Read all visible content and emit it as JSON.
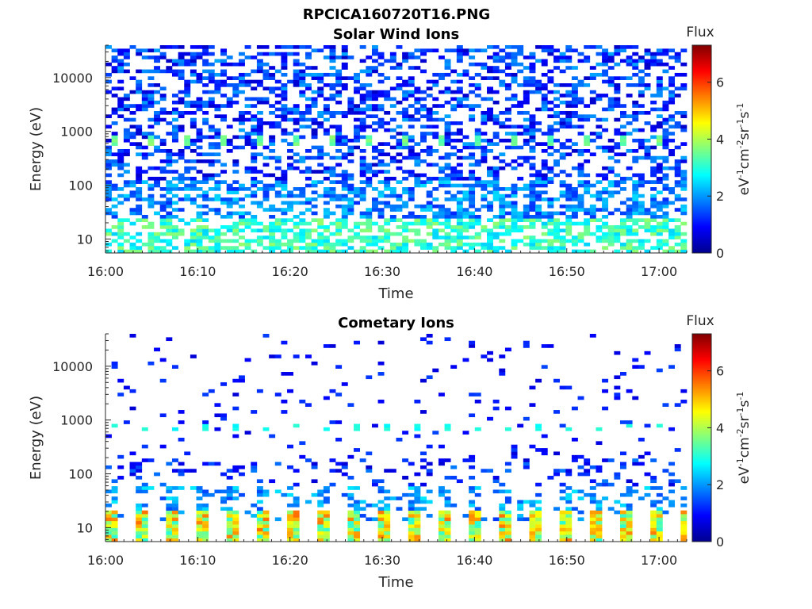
{
  "figure_title": "RPCICA160720T16.PNG",
  "chart_data": [
    {
      "type": "heatmap",
      "title": "Solar Wind Ions",
      "xlabel": "Time",
      "ylabel": "Energy (eV)",
      "y_scale": "log",
      "xlim": [
        "16:00",
        "17:03"
      ],
      "ylim": [
        5.5,
        40000
      ],
      "x_ticks": [
        "16:00",
        "16:10",
        "16:20",
        "16:30",
        "16:40",
        "16:50",
        "17:00"
      ],
      "y_ticks": [
        "10",
        "100",
        "1000",
        "10000"
      ],
      "colorbar": {
        "label": "Flux",
        "units": "eV-1cm-2sr-1s-1",
        "range": [
          0,
          7.3
        ],
        "ticks": [
          "0",
          "2",
          "4",
          "6"
        ]
      },
      "pattern": "noisy",
      "values_description": "Dense low-flux (~0.5-2.5) coverage across all energies; ~3-4 at 8-25 eV; ~3.5 band near 700 eV every ~3 min"
    },
    {
      "type": "heatmap",
      "title": "Cometary Ions",
      "xlabel": "Time",
      "ylabel": "Energy (eV)",
      "y_scale": "log",
      "xlim": [
        "16:00",
        "17:03"
      ],
      "ylim": [
        5.5,
        40000
      ],
      "x_ticks": [
        "16:00",
        "16:10",
        "16:20",
        "16:30",
        "16:40",
        "16:50",
        "17:00"
      ],
      "y_ticks": [
        "10",
        "100",
        "1000",
        "10000"
      ],
      "colorbar": {
        "label": "Flux",
        "units": "eV-1cm-2sr-1s-1",
        "range": [
          0,
          7.3
        ],
        "ticks": [
          "0",
          "2",
          "4",
          "6"
        ]
      },
      "pattern": "pulsed",
      "values_description": "Sparse low-flux (~0.5-1.5) above 100 eV; pulses every ~3.2 min with flux ~3-5.5 between 6 and 22 eV"
    }
  ]
}
